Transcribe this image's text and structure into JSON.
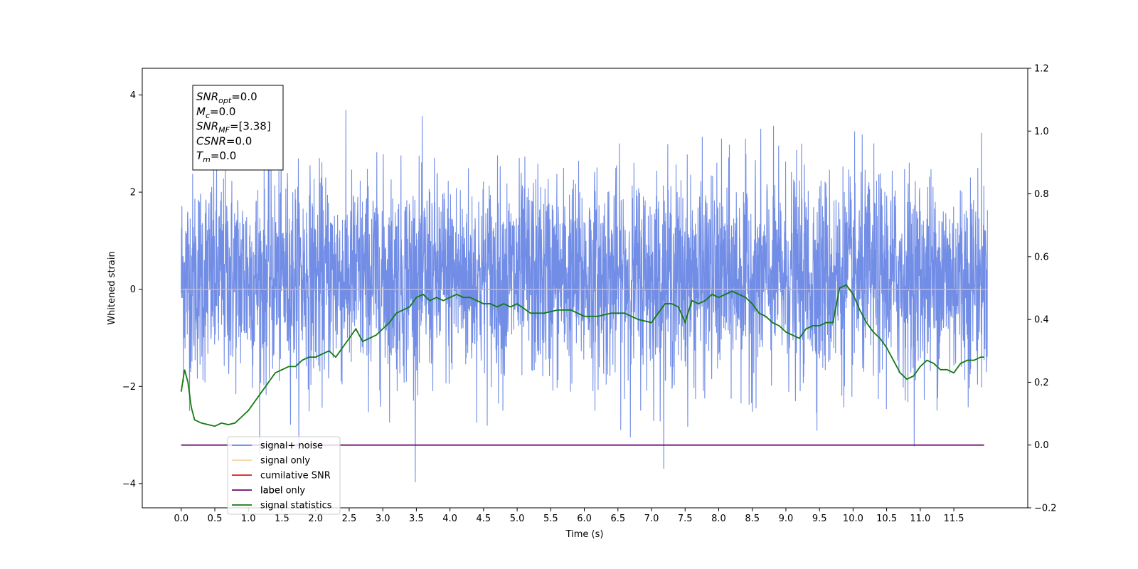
{
  "chart_data": {
    "type": "line",
    "xlabel": "Time (s)",
    "ylabel": "Whitened strain",
    "xlim": [
      -0.58,
      12.6
    ],
    "ylim": [
      -4.5,
      4.55
    ],
    "y2lim": [
      -0.2,
      1.2
    ],
    "xticks": [
      "0.0",
      "0.5",
      "1.0",
      "1.5",
      "2.0",
      "2.5",
      "3.0",
      "3.5",
      "4.0",
      "4.5",
      "5.0",
      "5.5",
      "6.0",
      "6.5",
      "7.0",
      "7.5",
      "8.0",
      "8.5",
      "9.0",
      "9.5",
      "10.0",
      "10.5",
      "11.0",
      "11.5"
    ],
    "yticks": [
      "−4",
      "−2",
      "0",
      "2",
      "4"
    ],
    "y2ticks": [
      "−0.2",
      "0.0",
      "0.2",
      "0.4",
      "0.6",
      "0.8",
      "1.0",
      "1.2"
    ],
    "colors": {
      "noise": "#6a87e5",
      "signal": "#f5b55a",
      "cumulative": "#e01818",
      "label": "#6e0a6e",
      "statistics": "#127a12"
    },
    "series": [
      {
        "name": "signal+ noise",
        "kind": "noise",
        "x_range": [
          0.0,
          12.0
        ],
        "approx_range": [
          -4.1,
          4.1
        ]
      },
      {
        "name": "signal only",
        "kind": "flat",
        "y": 0.0
      },
      {
        "name": "cumilative SNR"
      },
      {
        "name": "label",
        "axis": "right",
        "y": 0.0
      },
      {
        "name": "label only"
      },
      {
        "name": "signal statistics",
        "axis": "right",
        "x": [
          0.0,
          0.05,
          0.1,
          0.15,
          0.2,
          0.3,
          0.4,
          0.5,
          0.6,
          0.7,
          0.8,
          0.9,
          1.0,
          1.1,
          1.2,
          1.3,
          1.4,
          1.5,
          1.6,
          1.7,
          1.8,
          1.9,
          2.0,
          2.1,
          2.2,
          2.3,
          2.4,
          2.5,
          2.6,
          2.7,
          2.8,
          2.9,
          3.0,
          3.1,
          3.2,
          3.3,
          3.4,
          3.5,
          3.6,
          3.7,
          3.8,
          3.9,
          4.0,
          4.1,
          4.2,
          4.3,
          4.4,
          4.5,
          4.6,
          4.7,
          4.8,
          4.9,
          5.0,
          5.2,
          5.4,
          5.6,
          5.8,
          6.0,
          6.2,
          6.4,
          6.6,
          6.8,
          7.0,
          7.1,
          7.2,
          7.3,
          7.4,
          7.5,
          7.6,
          7.7,
          7.8,
          7.9,
          8.0,
          8.1,
          8.2,
          8.3,
          8.4,
          8.5,
          8.6,
          8.7,
          8.8,
          8.9,
          9.0,
          9.1,
          9.2,
          9.3,
          9.4,
          9.5,
          9.6,
          9.7,
          9.8,
          9.9,
          10.0,
          10.1,
          10.2,
          10.3,
          10.4,
          10.5,
          10.6,
          10.7,
          10.8,
          10.9,
          11.0,
          11.1,
          11.2,
          11.3,
          11.4,
          11.5,
          11.6,
          11.7,
          11.8,
          11.9,
          11.95
        ],
        "y": [
          0.17,
          0.24,
          0.2,
          0.12,
          0.08,
          0.07,
          0.065,
          0.06,
          0.07,
          0.065,
          0.07,
          0.09,
          0.11,
          0.14,
          0.17,
          0.2,
          0.23,
          0.24,
          0.25,
          0.25,
          0.27,
          0.28,
          0.28,
          0.29,
          0.3,
          0.28,
          0.31,
          0.34,
          0.37,
          0.33,
          0.34,
          0.35,
          0.37,
          0.39,
          0.42,
          0.43,
          0.44,
          0.47,
          0.48,
          0.46,
          0.47,
          0.46,
          0.47,
          0.48,
          0.47,
          0.47,
          0.46,
          0.45,
          0.45,
          0.44,
          0.45,
          0.44,
          0.45,
          0.42,
          0.42,
          0.43,
          0.43,
          0.41,
          0.41,
          0.42,
          0.42,
          0.4,
          0.39,
          0.42,
          0.45,
          0.45,
          0.44,
          0.39,
          0.46,
          0.45,
          0.46,
          0.48,
          0.47,
          0.48,
          0.49,
          0.48,
          0.47,
          0.45,
          0.42,
          0.41,
          0.39,
          0.38,
          0.36,
          0.35,
          0.34,
          0.37,
          0.38,
          0.38,
          0.39,
          0.39,
          0.5,
          0.51,
          0.48,
          0.43,
          0.39,
          0.36,
          0.34,
          0.31,
          0.27,
          0.23,
          0.21,
          0.22,
          0.25,
          0.27,
          0.26,
          0.24,
          0.24,
          0.23,
          0.26,
          0.27,
          0.27,
          0.28,
          0.28
        ]
      }
    ],
    "legend": [
      "signal+ noise",
      "signal only",
      "cumilative SNR",
      "label",
      "label only",
      "signal statistics"
    ],
    "legend_position": "lower-left",
    "annotation": {
      "lines": [
        {
          "sym": "SNR",
          "sub": "opt",
          "value": "=0.0"
        },
        {
          "sym": "M",
          "sub": "c",
          "value": "=0.0"
        },
        {
          "sym": "SNR",
          "sub": "MF",
          "value": "=[3.38]"
        },
        {
          "sym": "CSNR",
          "sub": "",
          "value": "=0.0"
        },
        {
          "sym": "T",
          "sub": "m",
          "value": "=0.0"
        }
      ]
    }
  }
}
